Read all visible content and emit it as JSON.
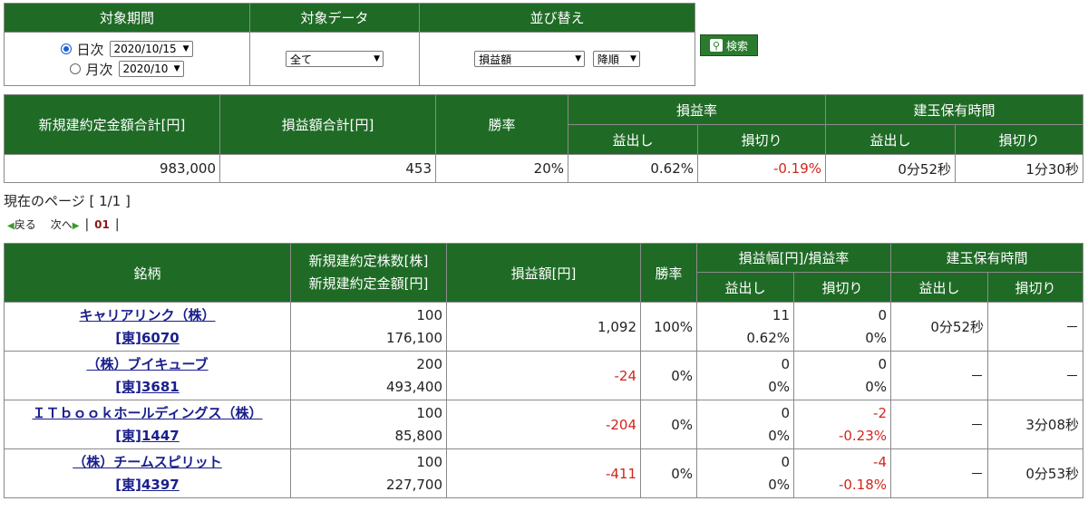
{
  "filter": {
    "headers": [
      "対象期間",
      "対象データ",
      "並び替え"
    ],
    "daily_label": "日次",
    "daily_value": "2020/10/15",
    "monthly_label": "月次",
    "monthly_value": "2020/10",
    "data_value": "全て",
    "sort_value": "損益額",
    "order_value": "降順",
    "search_label": "検索"
  },
  "summary": {
    "headers": {
      "total_amount": "新規建約定金額合計[円]",
      "total_pl": "損益額合計[円]",
      "win_rate": "勝率",
      "pl_rate": "損益率",
      "hold_time": "建玉保有時間",
      "profit": "益出し",
      "loss": "損切り"
    },
    "values": {
      "total_amount": "983,000",
      "total_pl": "453",
      "win_rate": "20%",
      "pl_rate_profit": "0.62%",
      "pl_rate_loss": "-0.19%",
      "hold_profit": "0分52秒",
      "hold_loss": "1分30秒"
    }
  },
  "pager": {
    "page_info": "現在のページ [ 1/1 ]",
    "back": "戻る",
    "next": "次へ",
    "current": "01"
  },
  "detail": {
    "headers": {
      "name": "銘柄",
      "shares": "新規建約定株数[株]",
      "amount": "新規建約定金額[円]",
      "pl": "損益額[円]",
      "win_rate": "勝率",
      "pl_range": "損益幅[円]/損益率",
      "hold_time": "建玉保有時間",
      "profit": "益出し",
      "loss": "損切り"
    },
    "rows": [
      {
        "name": "キャリアリンク（株）",
        "code": "[東]6070",
        "shares": "100",
        "amount": "176,100",
        "pl": "1,092",
        "win": "100%",
        "profit_w": "11",
        "profit_r": "0.62%",
        "loss_w": "0",
        "loss_r": "0%",
        "hold_p": "0分52秒",
        "hold_l": "－"
      },
      {
        "name": "（株）ブイキューブ",
        "code": "[東]3681",
        "shares": "200",
        "amount": "493,400",
        "pl": "-24",
        "win": "0%",
        "profit_w": "0",
        "profit_r": "0%",
        "loss_w": "0",
        "loss_r": "0%",
        "hold_p": "－",
        "hold_l": "－"
      },
      {
        "name": "ＩＴｂｏｏｋホールディングス（株）",
        "code": "[東]1447",
        "shares": "100",
        "amount": "85,800",
        "pl": "-204",
        "win": "0%",
        "profit_w": "0",
        "profit_r": "0%",
        "loss_w": "-2",
        "loss_r": "-0.23%",
        "hold_p": "－",
        "hold_l": "3分08秒"
      },
      {
        "name": "（株）チームスピリット",
        "code": "[東]4397",
        "shares": "100",
        "amount": "227,700",
        "pl": "-411",
        "win": "0%",
        "profit_w": "0",
        "profit_r": "0%",
        "loss_w": "-4",
        "loss_r": "-0.18%",
        "hold_p": "－",
        "hold_l": "0分53秒"
      }
    ]
  }
}
